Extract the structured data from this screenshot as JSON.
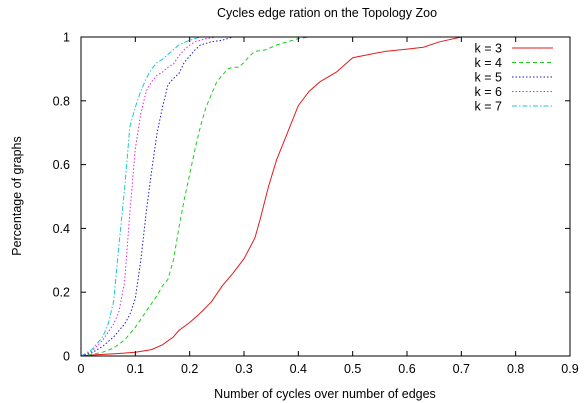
{
  "chart_data": {
    "type": "line",
    "title": "Cycles edge ration on the Topology Zoo",
    "xlabel": "Number of cycles over number of edges",
    "ylabel": "Percentage of graphs",
    "xlim": [
      0,
      0.9
    ],
    "ylim": [
      0,
      1
    ],
    "xticks": [
      "0",
      "0.1",
      "0.2",
      "0.3",
      "0.4",
      "0.5",
      "0.6",
      "0.7",
      "0.8",
      "0.9"
    ],
    "yticks": [
      "0",
      "0.2",
      "0.4",
      "0.6",
      "0.8",
      "1"
    ],
    "grid": false,
    "legend_position": "top-right",
    "series": [
      {
        "name": "k = 3",
        "color": "#e41a1c",
        "dash": "solid",
        "points": [
          [
            0,
            0
          ],
          [
            0.02,
            0.003
          ],
          [
            0.05,
            0.006
          ],
          [
            0.08,
            0.009
          ],
          [
            0.1,
            0.012
          ],
          [
            0.13,
            0.02
          ],
          [
            0.15,
            0.035
          ],
          [
            0.17,
            0.06
          ],
          [
            0.18,
            0.08
          ],
          [
            0.2,
            0.105
          ],
          [
            0.22,
            0.135
          ],
          [
            0.24,
            0.17
          ],
          [
            0.26,
            0.22
          ],
          [
            0.28,
            0.26
          ],
          [
            0.3,
            0.305
          ],
          [
            0.32,
            0.37
          ],
          [
            0.33,
            0.43
          ],
          [
            0.345,
            0.53
          ],
          [
            0.36,
            0.615
          ],
          [
            0.38,
            0.7
          ],
          [
            0.4,
            0.785
          ],
          [
            0.42,
            0.83
          ],
          [
            0.44,
            0.86
          ],
          [
            0.47,
            0.89
          ],
          [
            0.5,
            0.935
          ],
          [
            0.53,
            0.945
          ],
          [
            0.56,
            0.955
          ],
          [
            0.6,
            0.962
          ],
          [
            0.63,
            0.968
          ],
          [
            0.66,
            0.985
          ],
          [
            0.7,
            1
          ],
          [
            0.9,
            1
          ]
        ]
      },
      {
        "name": "k = 4",
        "color": "#1fcc1f",
        "dash": "dashed",
        "points": [
          [
            0,
            0
          ],
          [
            0.02,
            0.005
          ],
          [
            0.04,
            0.012
          ],
          [
            0.06,
            0.025
          ],
          [
            0.08,
            0.05
          ],
          [
            0.1,
            0.09
          ],
          [
            0.12,
            0.14
          ],
          [
            0.14,
            0.19
          ],
          [
            0.15,
            0.22
          ],
          [
            0.16,
            0.24
          ],
          [
            0.17,
            0.3
          ],
          [
            0.18,
            0.4
          ],
          [
            0.19,
            0.49
          ],
          [
            0.2,
            0.57
          ],
          [
            0.21,
            0.65
          ],
          [
            0.22,
            0.72
          ],
          [
            0.23,
            0.78
          ],
          [
            0.24,
            0.82
          ],
          [
            0.25,
            0.86
          ],
          [
            0.26,
            0.88
          ],
          [
            0.27,
            0.9
          ],
          [
            0.28,
            0.905
          ],
          [
            0.29,
            0.905
          ],
          [
            0.3,
            0.92
          ],
          [
            0.31,
            0.94
          ],
          [
            0.32,
            0.955
          ],
          [
            0.34,
            0.96
          ],
          [
            0.36,
            0.975
          ],
          [
            0.38,
            0.985
          ],
          [
            0.4,
            0.995
          ],
          [
            0.42,
            1
          ],
          [
            0.9,
            1
          ]
        ]
      },
      {
        "name": "k = 5",
        "color": "#1a1ad0",
        "dash": "dotted",
        "points": [
          [
            0,
            0
          ],
          [
            0.02,
            0.01
          ],
          [
            0.04,
            0.03
          ],
          [
            0.06,
            0.06
          ],
          [
            0.08,
            0.1
          ],
          [
            0.09,
            0.13
          ],
          [
            0.1,
            0.18
          ],
          [
            0.11,
            0.3
          ],
          [
            0.12,
            0.45
          ],
          [
            0.13,
            0.58
          ],
          [
            0.14,
            0.7
          ],
          [
            0.15,
            0.78
          ],
          [
            0.16,
            0.85
          ],
          [
            0.17,
            0.87
          ],
          [
            0.18,
            0.885
          ],
          [
            0.19,
            0.92
          ],
          [
            0.2,
            0.94
          ],
          [
            0.21,
            0.96
          ],
          [
            0.22,
            0.975
          ],
          [
            0.24,
            0.985
          ],
          [
            0.26,
            0.99
          ],
          [
            0.28,
            1
          ],
          [
            0.9,
            1
          ]
        ]
      },
      {
        "name": "k = 6",
        "color": "#e028e0",
        "dash": "dotted",
        "points": [
          [
            0,
            0
          ],
          [
            0.02,
            0.015
          ],
          [
            0.04,
            0.05
          ],
          [
            0.06,
            0.1
          ],
          [
            0.07,
            0.14
          ],
          [
            0.08,
            0.23
          ],
          [
            0.09,
            0.45
          ],
          [
            0.1,
            0.65
          ],
          [
            0.11,
            0.76
          ],
          [
            0.12,
            0.83
          ],
          [
            0.13,
            0.86
          ],
          [
            0.14,
            0.88
          ],
          [
            0.15,
            0.89
          ],
          [
            0.16,
            0.905
          ],
          [
            0.17,
            0.915
          ],
          [
            0.18,
            0.94
          ],
          [
            0.19,
            0.96
          ],
          [
            0.2,
            0.975
          ],
          [
            0.21,
            0.985
          ],
          [
            0.23,
            0.995
          ],
          [
            0.25,
            1
          ],
          [
            0.9,
            1
          ]
        ]
      },
      {
        "name": "k = 7",
        "color": "#1ec6d8",
        "dash": "dashdot",
        "points": [
          [
            0,
            0
          ],
          [
            0.02,
            0.02
          ],
          [
            0.04,
            0.06
          ],
          [
            0.05,
            0.1
          ],
          [
            0.06,
            0.17
          ],
          [
            0.07,
            0.35
          ],
          [
            0.08,
            0.52
          ],
          [
            0.09,
            0.72
          ],
          [
            0.1,
            0.78
          ],
          [
            0.11,
            0.83
          ],
          [
            0.12,
            0.87
          ],
          [
            0.13,
            0.9
          ],
          [
            0.14,
            0.92
          ],
          [
            0.15,
            0.93
          ],
          [
            0.16,
            0.945
          ],
          [
            0.17,
            0.96
          ],
          [
            0.18,
            0.975
          ],
          [
            0.2,
            0.99
          ],
          [
            0.22,
            1
          ],
          [
            0.9,
            1
          ]
        ]
      }
    ]
  }
}
